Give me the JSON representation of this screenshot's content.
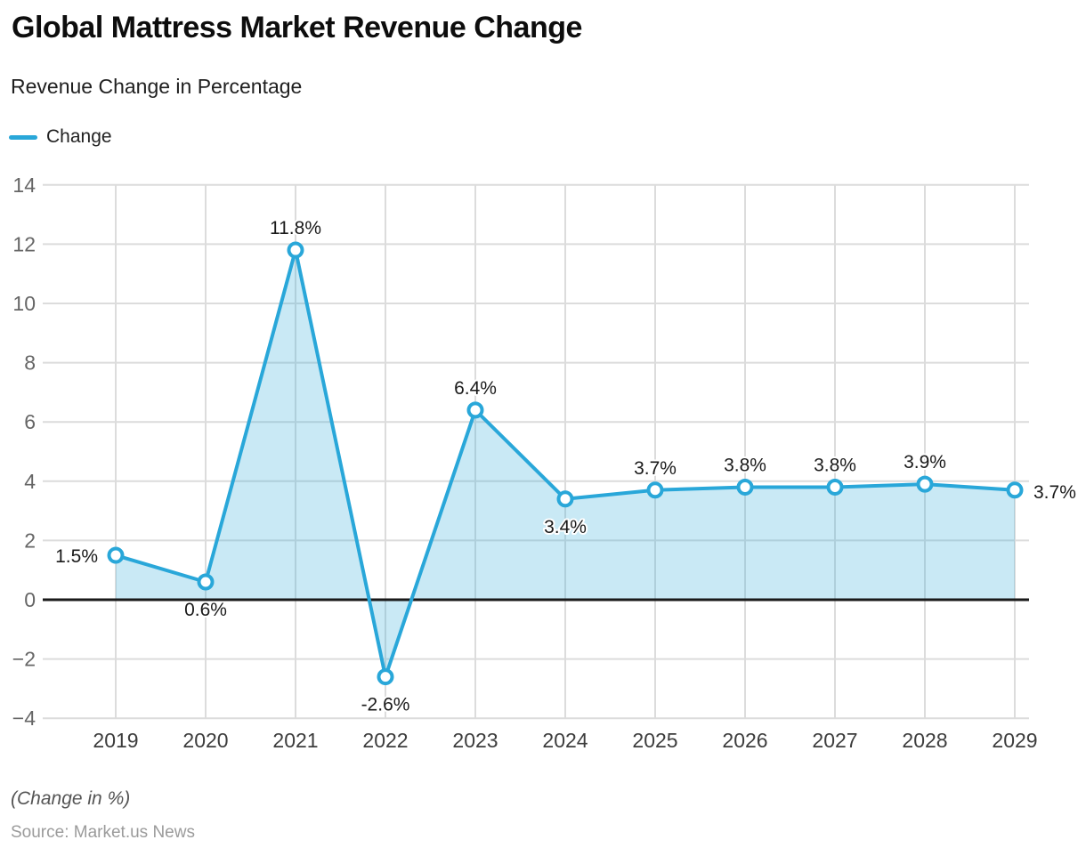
{
  "page": {
    "title": "Global Mattress Market Revenue Change",
    "subtitle": "Revenue Change in Percentage",
    "footnote": "(Change in %)",
    "source": "Source: Market.us News"
  },
  "legend": {
    "label": "Change"
  },
  "chart_data": {
    "type": "area",
    "title": "Global Mattress Market Revenue Change",
    "subtitle": "Revenue Change in Percentage",
    "xlabel": "",
    "ylabel": "Revenue Change in Percentage",
    "categories": [
      "2019",
      "2020",
      "2021",
      "2022",
      "2023",
      "2024",
      "2025",
      "2026",
      "2027",
      "2028",
      "2029"
    ],
    "series": [
      {
        "name": "Change",
        "values": [
          1.5,
          0.6,
          11.8,
          -2.6,
          6.4,
          3.4,
          3.7,
          3.8,
          3.8,
          3.9,
          3.7
        ]
      }
    ],
    "point_labels": [
      "1.5%",
      "0.6%",
      "11.8%",
      "-2.6%",
      "6.4%",
      "3.4%",
      "3.7%",
      "3.8%",
      "3.8%",
      "3.9%",
      "3.7%"
    ],
    "label_placement": [
      "left",
      "below",
      "above",
      "below",
      "above",
      "below",
      "above",
      "above",
      "above",
      "above",
      "right"
    ],
    "ylim": [
      -4,
      14
    ],
    "yticks": [
      14,
      12,
      10,
      8,
      6,
      4,
      2,
      0,
      -2,
      -4
    ],
    "ytick_labels": [
      "14",
      "12",
      "10",
      "8",
      "6",
      "4",
      "2",
      "0",
      "−2",
      "−4"
    ],
    "grid": true,
    "baseline_value": 0,
    "legend_position": "top-left",
    "colors": {
      "line": "#29a7d9",
      "fill": "rgba(41, 167, 217, 0.25)",
      "grid": "#dcdcdc",
      "zero_line": "#1a1a1a",
      "ytick_text": "#666666",
      "xtick_text": "#3d3d3d",
      "point_label_text": "#1a1a1a",
      "marker_fill": "#ffffff"
    }
  }
}
